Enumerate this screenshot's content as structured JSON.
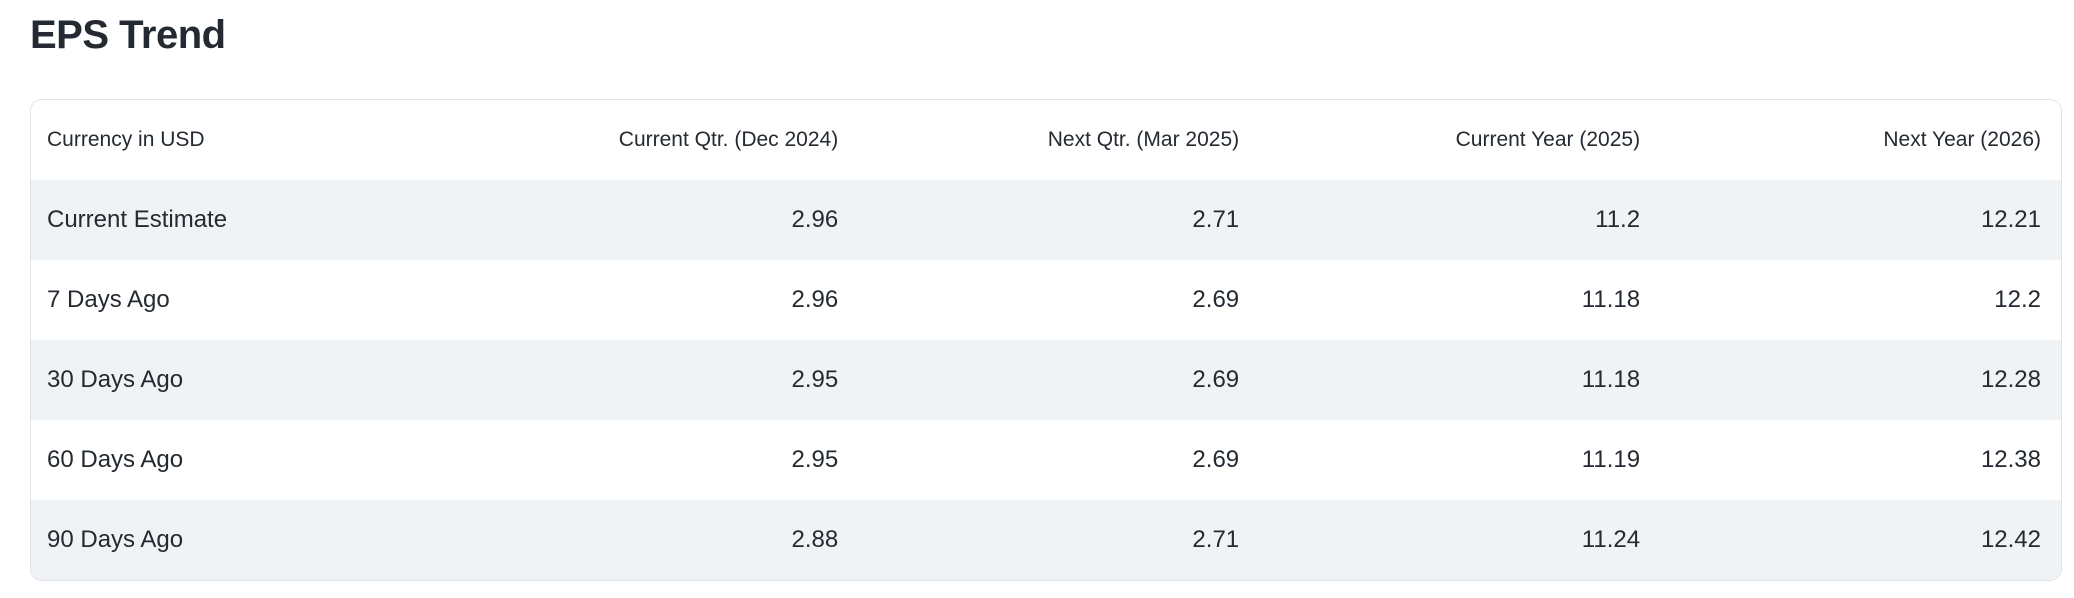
{
  "page": {
    "title": "EPS Trend"
  },
  "table": {
    "columns": [
      "Currency in USD",
      "Current Qtr. (Dec 2024)",
      "Next Qtr. (Mar 2025)",
      "Current Year (2025)",
      "Next Year (2026)"
    ],
    "rows": [
      {
        "label": "Current Estimate",
        "values": [
          "2.96",
          "2.71",
          "11.2",
          "12.21"
        ]
      },
      {
        "label": "7 Days Ago",
        "values": [
          "2.96",
          "2.69",
          "11.18",
          "12.2"
        ]
      },
      {
        "label": "30 Days Ago",
        "values": [
          "2.95",
          "2.69",
          "11.18",
          "12.28"
        ]
      },
      {
        "label": "60 Days Ago",
        "values": [
          "2.95",
          "2.69",
          "11.19",
          "12.38"
        ]
      },
      {
        "label": "90 Days Ago",
        "values": [
          "2.88",
          "2.71",
          "11.24",
          "12.42"
        ]
      }
    ]
  },
  "colors": {
    "text": "#232a31",
    "row_stripe": "#f0f3f5",
    "card_border": "#e0e4e9",
    "background": "#ffffff"
  }
}
